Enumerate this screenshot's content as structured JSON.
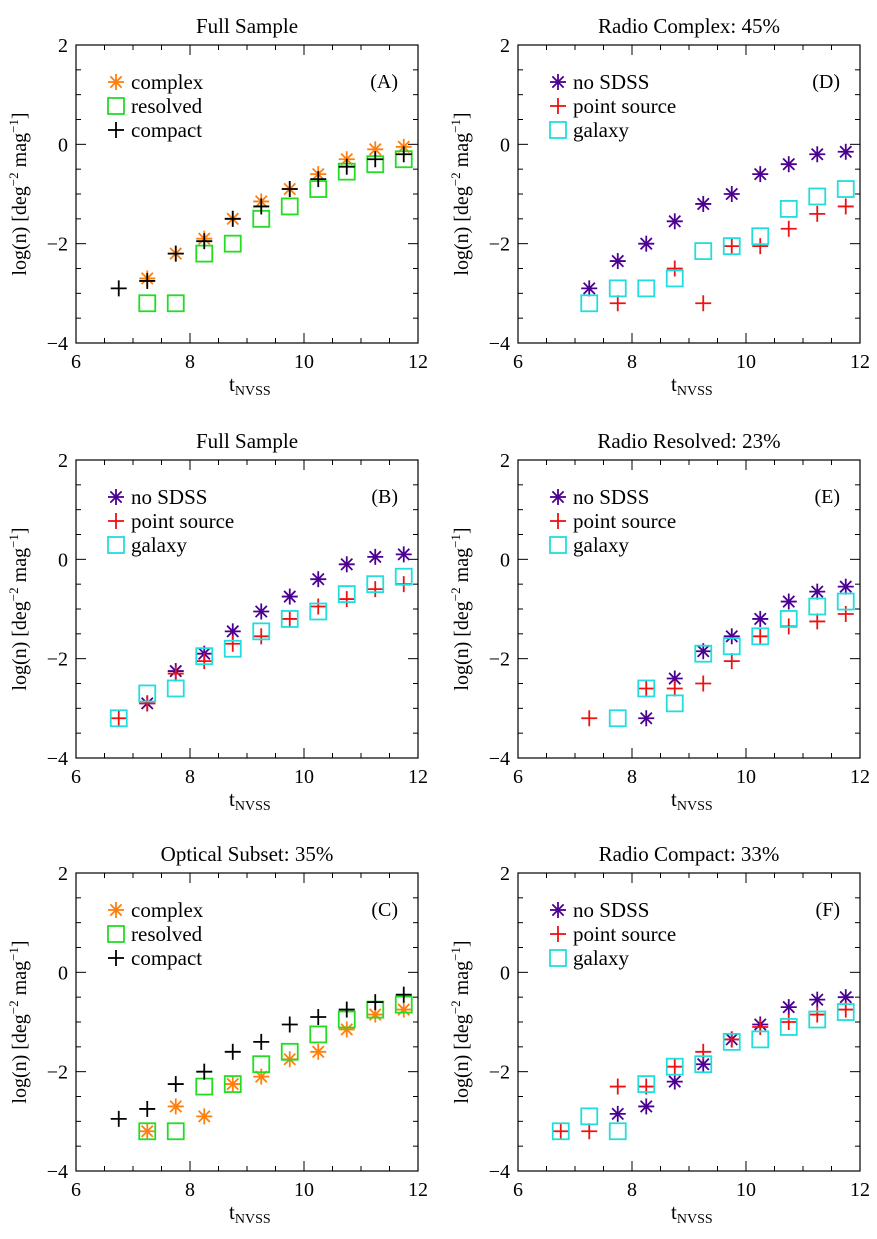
{
  "chart_data": [
    {
      "panel": "A",
      "type": "scatter",
      "title": "Full Sample",
      "label": "(A)",
      "xlabel": "t",
      "xlabel_sub": "NVSS",
      "ylabel": "log(n) [deg",
      "ylabel_sup1": "−2",
      "ylabel_mid": " mag",
      "ylabel_sup2": "−1",
      "ylabel_end": "]",
      "xlim": [
        6,
        12
      ],
      "ylim": [
        -4,
        2
      ],
      "xticks": [
        "6",
        "8",
        "10",
        "12"
      ],
      "yticks": [
        "−4",
        "−2",
        "0",
        "2"
      ],
      "legend": "top-left",
      "series": [
        {
          "name": "complex",
          "marker": "asterisk",
          "color": "#ff7f0e",
          "x": [
            7.25,
            7.75,
            8.25,
            8.75,
            9.25,
            9.75,
            10.25,
            10.75,
            11.25,
            11.75
          ],
          "y": [
            -2.7,
            -2.2,
            -1.9,
            -1.5,
            -1.15,
            -0.9,
            -0.6,
            -0.3,
            -0.1,
            -0.05
          ]
        },
        {
          "name": "resolved",
          "marker": "square",
          "color": "#22dd22",
          "x": [
            7.25,
            7.75,
            8.25,
            8.75,
            9.25,
            9.75,
            10.25,
            10.75,
            11.25,
            11.75
          ],
          "y": [
            -3.2,
            -3.2,
            -2.2,
            -2.0,
            -1.5,
            -1.25,
            -0.9,
            -0.55,
            -0.4,
            -0.3
          ]
        },
        {
          "name": "compact",
          "marker": "plus",
          "color": "#000000",
          "x": [
            6.75,
            7.25,
            7.75,
            8.25,
            8.75,
            9.25,
            9.75,
            10.25,
            10.75,
            11.25,
            11.75
          ],
          "y": [
            -2.9,
            -2.75,
            -2.2,
            -1.95,
            -1.5,
            -1.25,
            -0.9,
            -0.7,
            -0.45,
            -0.3,
            -0.2
          ]
        }
      ]
    },
    {
      "panel": "D",
      "type": "scatter",
      "title": "Radio Complex: 45%",
      "label": "(D)",
      "xlabel": "t",
      "xlabel_sub": "NVSS",
      "ylabel": "log(n) [deg",
      "ylabel_sup1": "−2",
      "ylabel_mid": " mag",
      "ylabel_sup2": "−1",
      "ylabel_end": "]",
      "xlim": [
        6,
        12
      ],
      "ylim": [
        -4,
        2
      ],
      "xticks": [
        "6",
        "8",
        "10",
        "12"
      ],
      "yticks": [
        "−4",
        "−2",
        "0",
        "2"
      ],
      "legend": "top-left",
      "series": [
        {
          "name": "no SDSS",
          "marker": "asterisk",
          "color": "#4b0092",
          "x": [
            7.25,
            7.75,
            8.25,
            8.75,
            9.25,
            9.75,
            10.25,
            10.75,
            11.25,
            11.75
          ],
          "y": [
            -2.9,
            -2.35,
            -2.0,
            -1.55,
            -1.2,
            -1.0,
            -0.6,
            -0.4,
            -0.2,
            -0.15
          ]
        },
        {
          "name": "point source",
          "marker": "plus",
          "color": "#ee1111",
          "x": [
            7.75,
            8.75,
            9.25,
            9.75,
            10.25,
            10.75,
            11.25,
            11.75
          ],
          "y": [
            -3.2,
            -2.5,
            -3.2,
            -2.05,
            -2.05,
            -1.7,
            -1.4,
            -1.25
          ]
        },
        {
          "name": "galaxy",
          "marker": "square",
          "color": "#22dddd",
          "x": [
            7.25,
            7.75,
            8.25,
            8.75,
            9.25,
            9.75,
            10.25,
            10.75,
            11.25,
            11.75
          ],
          "y": [
            -3.2,
            -2.9,
            -2.9,
            -2.7,
            -2.15,
            -2.05,
            -1.85,
            -1.3,
            -1.05,
            -0.9
          ]
        }
      ]
    },
    {
      "panel": "B",
      "type": "scatter",
      "title": "Full Sample",
      "label": "(B)",
      "xlabel": "t",
      "xlabel_sub": "NVSS",
      "ylabel": "log(n) [deg",
      "ylabel_sup1": "−2",
      "ylabel_mid": " mag",
      "ylabel_sup2": "−1",
      "ylabel_end": "]",
      "xlim": [
        6,
        12
      ],
      "ylim": [
        -4,
        2
      ],
      "xticks": [
        "6",
        "8",
        "10",
        "12"
      ],
      "yticks": [
        "−4",
        "−2",
        "0",
        "2"
      ],
      "legend": "top-left",
      "series": [
        {
          "name": "no SDSS",
          "marker": "asterisk",
          "color": "#4b0092",
          "x": [
            7.25,
            7.75,
            8.25,
            8.75,
            9.25,
            9.75,
            10.25,
            10.75,
            11.25,
            11.75
          ],
          "y": [
            -2.9,
            -2.25,
            -1.9,
            -1.45,
            -1.05,
            -0.75,
            -0.4,
            -0.1,
            0.05,
            0.1
          ]
        },
        {
          "name": "point source",
          "marker": "plus",
          "color": "#ee1111",
          "x": [
            6.75,
            7.25,
            7.75,
            8.25,
            8.75,
            9.25,
            9.75,
            10.25,
            10.75,
            11.25,
            11.75
          ],
          "y": [
            -3.2,
            -2.9,
            -2.3,
            -2.05,
            -1.7,
            -1.55,
            -1.2,
            -0.95,
            -0.8,
            -0.6,
            -0.5
          ]
        },
        {
          "name": "galaxy",
          "marker": "square",
          "color": "#22dddd",
          "x": [
            6.75,
            7.25,
            7.75,
            8.25,
            8.75,
            9.25,
            9.75,
            10.25,
            10.75,
            11.25,
            11.75
          ],
          "y": [
            -3.2,
            -2.7,
            -2.6,
            -1.95,
            -1.8,
            -1.45,
            -1.2,
            -1.05,
            -0.7,
            -0.5,
            -0.35
          ]
        }
      ]
    },
    {
      "panel": "E",
      "type": "scatter",
      "title": "Radio Resolved: 23%",
      "label": "(E)",
      "xlabel": "t",
      "xlabel_sub": "NVSS",
      "ylabel": "log(n) [deg",
      "ylabel_sup1": "−2",
      "ylabel_mid": " mag",
      "ylabel_sup2": "−1",
      "ylabel_end": "]",
      "xlim": [
        6,
        12
      ],
      "ylim": [
        -4,
        2
      ],
      "xticks": [
        "6",
        "8",
        "10",
        "12"
      ],
      "yticks": [
        "−4",
        "−2",
        "0",
        "2"
      ],
      "legend": "top-left",
      "series": [
        {
          "name": "no SDSS",
          "marker": "asterisk",
          "color": "#4b0092",
          "x": [
            8.25,
            8.75,
            9.25,
            9.75,
            10.25,
            10.75,
            11.25,
            11.75
          ],
          "y": [
            -3.2,
            -2.4,
            -1.85,
            -1.55,
            -1.2,
            -0.85,
            -0.65,
            -0.55
          ]
        },
        {
          "name": "point source",
          "marker": "plus",
          "color": "#ee1111",
          "x": [
            7.25,
            8.25,
            8.75,
            9.25,
            9.75,
            10.25,
            10.75,
            11.25,
            11.75
          ],
          "y": [
            -3.2,
            -2.6,
            -2.6,
            -2.5,
            -2.05,
            -1.55,
            -1.35,
            -1.25,
            -1.1
          ]
        },
        {
          "name": "galaxy",
          "marker": "square",
          "color": "#22dddd",
          "x": [
            7.75,
            8.25,
            8.75,
            9.25,
            9.75,
            10.25,
            10.75,
            11.25,
            11.75
          ],
          "y": [
            -3.2,
            -2.6,
            -2.9,
            -1.9,
            -1.75,
            -1.55,
            -1.2,
            -0.95,
            -0.85
          ]
        }
      ]
    },
    {
      "panel": "C",
      "type": "scatter",
      "title": "Optical Subset: 35%",
      "label": "(C)",
      "xlabel": "t",
      "xlabel_sub": "NVSS",
      "ylabel": "log(n) [deg",
      "ylabel_sup1": "−2",
      "ylabel_mid": " mag",
      "ylabel_sup2": "−1",
      "ylabel_end": "]",
      "xlim": [
        6,
        12
      ],
      "ylim": [
        -4,
        2
      ],
      "xticks": [
        "6",
        "8",
        "10",
        "12"
      ],
      "yticks": [
        "−4",
        "−2",
        "0",
        "2"
      ],
      "legend": "top-left",
      "series": [
        {
          "name": "complex",
          "marker": "asterisk",
          "color": "#ff7f0e",
          "x": [
            7.25,
            7.75,
            8.25,
            8.75,
            9.25,
            9.75,
            10.25,
            10.75,
            11.25,
            11.75
          ],
          "y": [
            -3.2,
            -2.7,
            -2.9,
            -2.25,
            -2.1,
            -1.75,
            -1.6,
            -1.15,
            -0.85,
            -0.75
          ]
        },
        {
          "name": "resolved",
          "marker": "square",
          "color": "#22dd22",
          "x": [
            7.25,
            7.75,
            8.25,
            8.75,
            9.25,
            9.75,
            10.25,
            10.75,
            11.25,
            11.75
          ],
          "y": [
            -3.2,
            -3.2,
            -2.3,
            -2.25,
            -1.85,
            -1.6,
            -1.25,
            -0.95,
            -0.75,
            -0.65
          ]
        },
        {
          "name": "compact",
          "marker": "plus",
          "color": "#000000",
          "x": [
            6.75,
            7.25,
            7.75,
            8.25,
            8.75,
            9.25,
            9.75,
            10.25,
            10.75,
            11.25,
            11.75
          ],
          "y": [
            -2.95,
            -2.75,
            -2.25,
            -2.0,
            -1.6,
            -1.4,
            -1.05,
            -0.9,
            -0.75,
            -0.6,
            -0.45
          ]
        }
      ]
    },
    {
      "panel": "F",
      "type": "scatter",
      "title": "Radio Compact: 33%",
      "label": "(F)",
      "xlabel": "t",
      "xlabel_sub": "NVSS",
      "ylabel": "log(n) [deg",
      "ylabel_sup1": "−2",
      "ylabel_mid": " mag",
      "ylabel_sup2": "−1",
      "ylabel_end": "]",
      "xlim": [
        6,
        12
      ],
      "ylim": [
        -4,
        2
      ],
      "xticks": [
        "6",
        "8",
        "10",
        "12"
      ],
      "yticks": [
        "−4",
        "−2",
        "0",
        "2"
      ],
      "legend": "top-left",
      "series": [
        {
          "name": "no SDSS",
          "marker": "asterisk",
          "color": "#4b0092",
          "x": [
            7.75,
            8.25,
            8.75,
            9.25,
            9.75,
            10.25,
            10.75,
            11.25,
            11.75
          ],
          "y": [
            -2.85,
            -2.7,
            -2.2,
            -1.85,
            -1.35,
            -1.05,
            -0.7,
            -0.55,
            -0.5
          ]
        },
        {
          "name": "point source",
          "marker": "plus",
          "color": "#ee1111",
          "x": [
            6.75,
            7.25,
            7.75,
            8.25,
            8.75,
            9.25,
            9.75,
            10.25,
            10.75,
            11.25,
            11.75
          ],
          "y": [
            -3.2,
            -3.2,
            -2.3,
            -2.3,
            -1.9,
            -1.6,
            -1.35,
            -1.1,
            -1.0,
            -0.85,
            -0.75
          ]
        },
        {
          "name": "galaxy",
          "marker": "square",
          "color": "#22dddd",
          "x": [
            6.75,
            7.25,
            7.75,
            8.25,
            8.75,
            9.25,
            9.75,
            10.25,
            10.75,
            11.25,
            11.75
          ],
          "y": [
            -3.2,
            -2.9,
            -3.2,
            -2.25,
            -1.9,
            -1.85,
            -1.4,
            -1.35,
            -1.1,
            -0.95,
            -0.8
          ]
        }
      ]
    }
  ]
}
